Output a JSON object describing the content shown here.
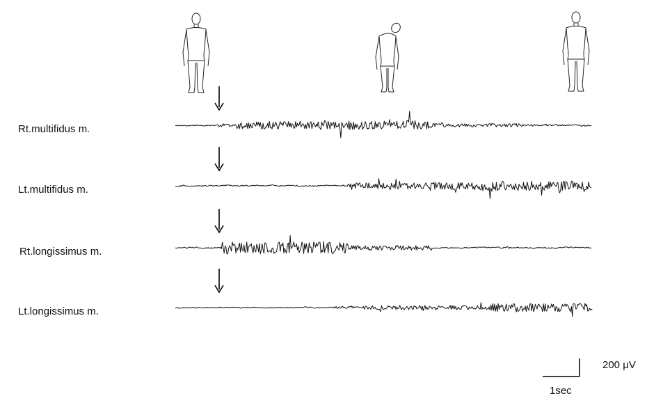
{
  "traces": [
    {
      "label": "Rt.multifidus m."
    },
    {
      "label": "Lt.multifidus m."
    },
    {
      "label": "Rt.longissimus m."
    },
    {
      "label": "Lt.longissimus m."
    }
  ],
  "scale_bar": {
    "amplitude": "200 μV",
    "time": "1sec"
  }
}
